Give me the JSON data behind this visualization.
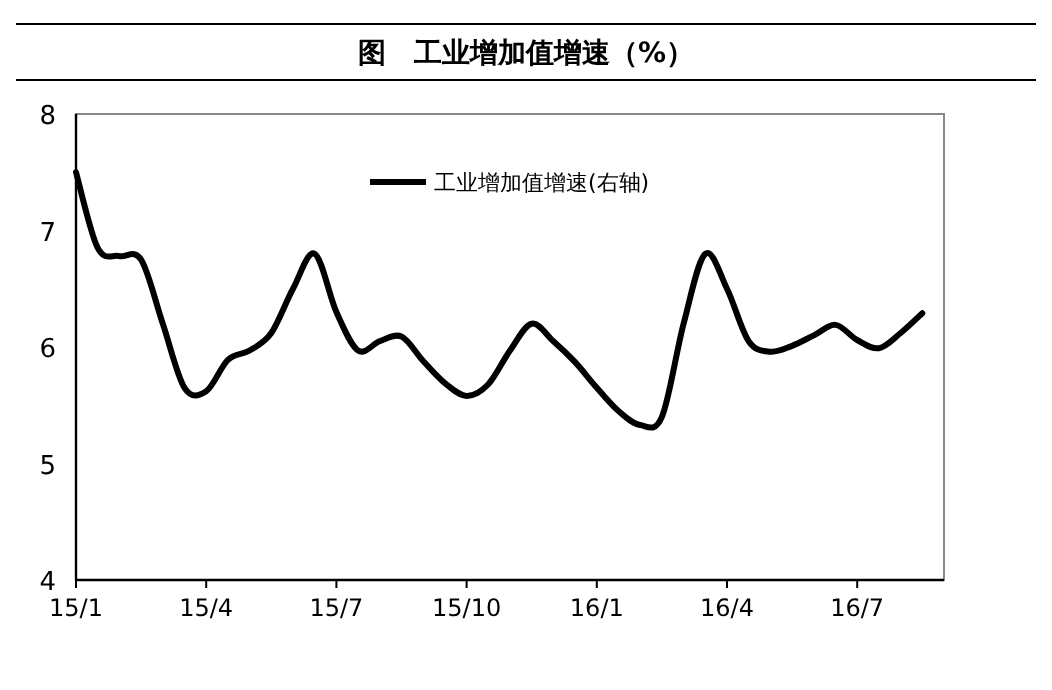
{
  "chart_data": {
    "type": "line",
    "title": "图　工业增加值增速（%）",
    "categories": [
      "15/1",
      null,
      null,
      null,
      null,
      null,
      "15/4",
      null,
      null,
      null,
      null,
      null,
      "15/7",
      null,
      null,
      null,
      null,
      null,
      "15/10",
      null,
      null,
      null,
      null,
      null,
      "16/1",
      null,
      null,
      null,
      null,
      null,
      "16/4",
      null,
      null,
      null,
      null,
      null,
      "16/7",
      null,
      null,
      null
    ],
    "ylim": [
      4,
      8
    ],
    "yticks": [
      4,
      5,
      6,
      7,
      8
    ],
    "series": [
      {
        "name": "工业增加值增速(右轴)",
        "color": "#000000",
        "values": [
          7.5,
          6.85,
          6.78,
          6.75,
          6.2,
          5.65,
          5.62,
          5.89,
          5.97,
          6.12,
          6.5,
          6.8,
          6.3,
          5.97,
          6.05,
          6.09,
          5.88,
          5.69,
          5.58,
          5.68,
          5.97,
          6.2,
          6.05,
          5.87,
          5.65,
          5.45,
          5.33,
          5.4,
          6.2,
          6.8,
          6.5,
          6.05,
          5.96,
          6.01,
          6.1,
          6.19,
          6.06,
          5.99,
          6.12,
          6.29
        ]
      }
    ],
    "legend": "top",
    "grid": false,
    "line_style": "solid"
  }
}
